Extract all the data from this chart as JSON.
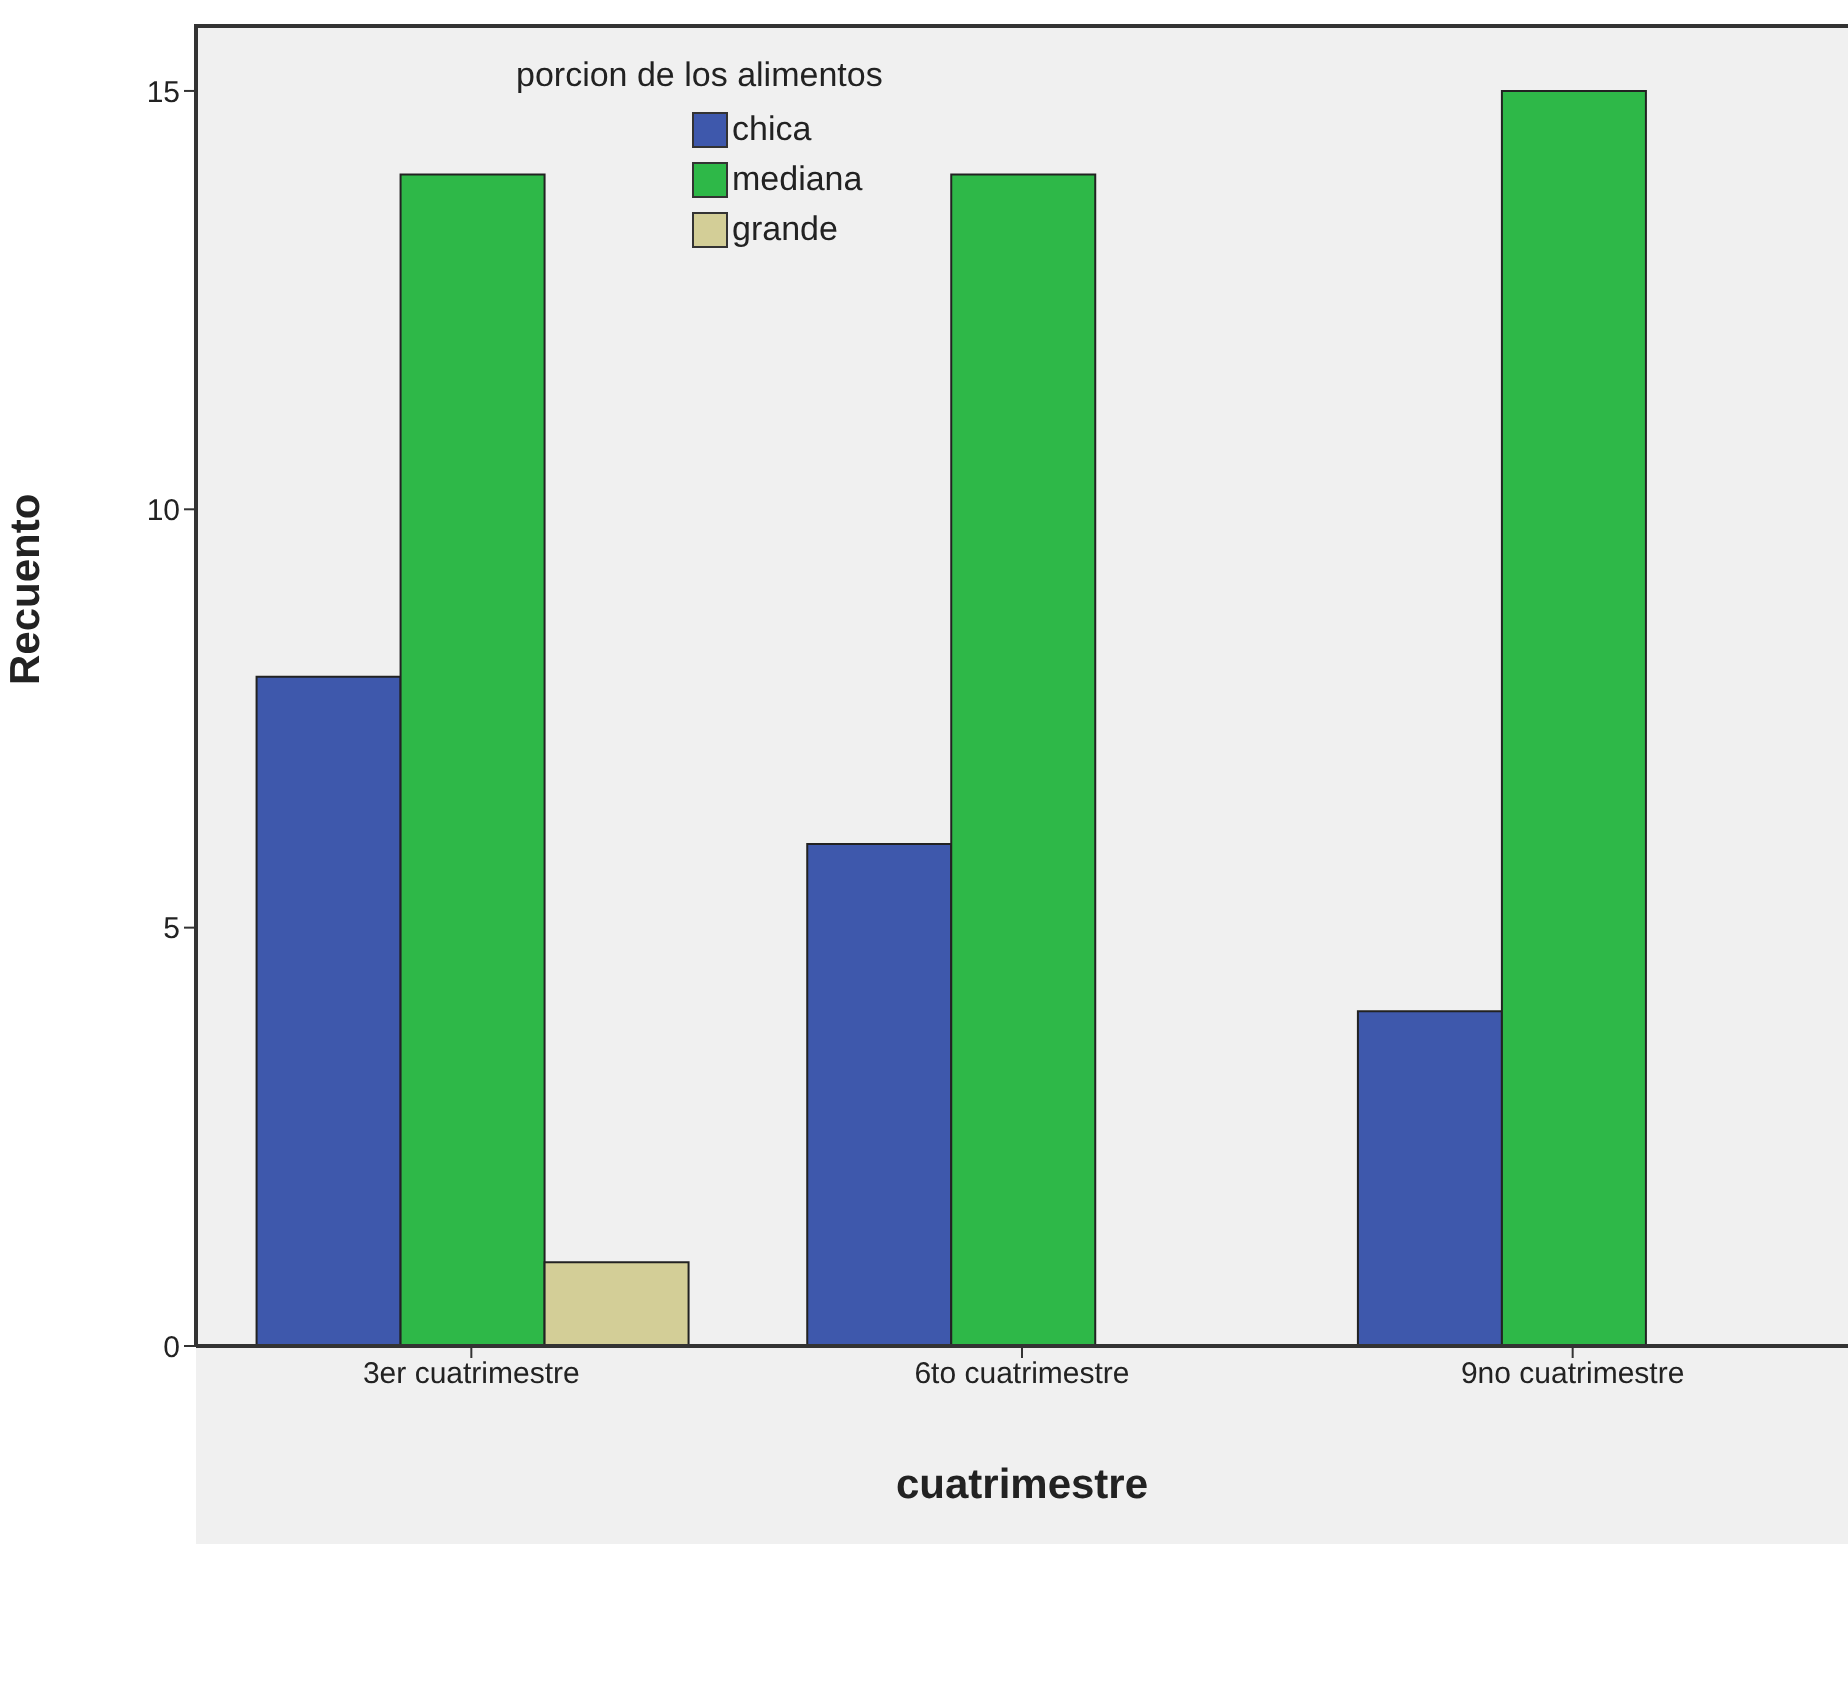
{
  "chart_data": {
    "type": "bar",
    "xlabel": "cuatrimestre",
    "ylabel": "Recuento",
    "legend_title": "porcion de los alimentos",
    "categories": [
      "3er cuatrimestre",
      "6to cuatrimestre",
      "9no cuatrimestre"
    ],
    "series": [
      {
        "name": "chica",
        "color": "#3e58ac",
        "values": [
          8,
          6,
          4
        ]
      },
      {
        "name": "mediana",
        "color": "#2eb848",
        "values": [
          14,
          14,
          15
        ]
      },
      {
        "name": "grande",
        "color": "#d3ce97",
        "values": [
          1,
          null,
          null
        ]
      }
    ],
    "ylim": [
      0,
      15.8
    ],
    "yticks": [
      0,
      5,
      10,
      15
    ],
    "grid": false,
    "legend": "top"
  }
}
